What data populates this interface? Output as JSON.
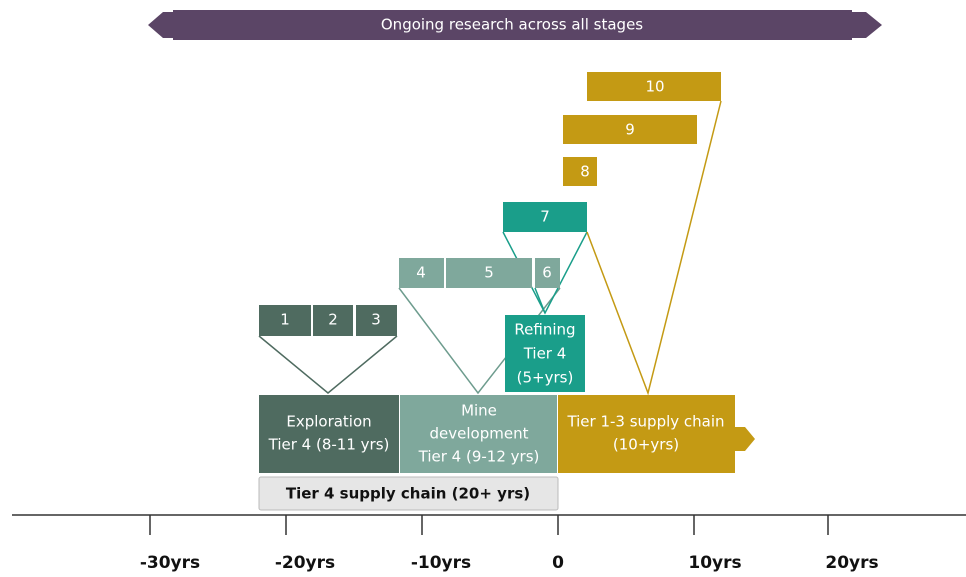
{
  "banner": "Ongoing research across all stages",
  "steps": [
    "1",
    "2",
    "3",
    "4",
    "5",
    "6",
    "7",
    "8",
    "9",
    "10"
  ],
  "stages": {
    "exploration": [
      "Exploration",
      "Tier 4 (8-11 yrs)"
    ],
    "mine": [
      "Mine",
      "development",
      "Tier 4 (9-12 yrs)"
    ],
    "refining": [
      "Refining",
      "Tier 4",
      "(5+yrs)"
    ],
    "supply": [
      "Tier 1-3 supply chain",
      "(10+yrs)"
    ],
    "tier4": "Tier 4 supply chain (20+ yrs)"
  },
  "axis": [
    "-30yrs",
    "-20yrs",
    "-10yrs",
    "0",
    "10yrs",
    "20yrs"
  ]
}
